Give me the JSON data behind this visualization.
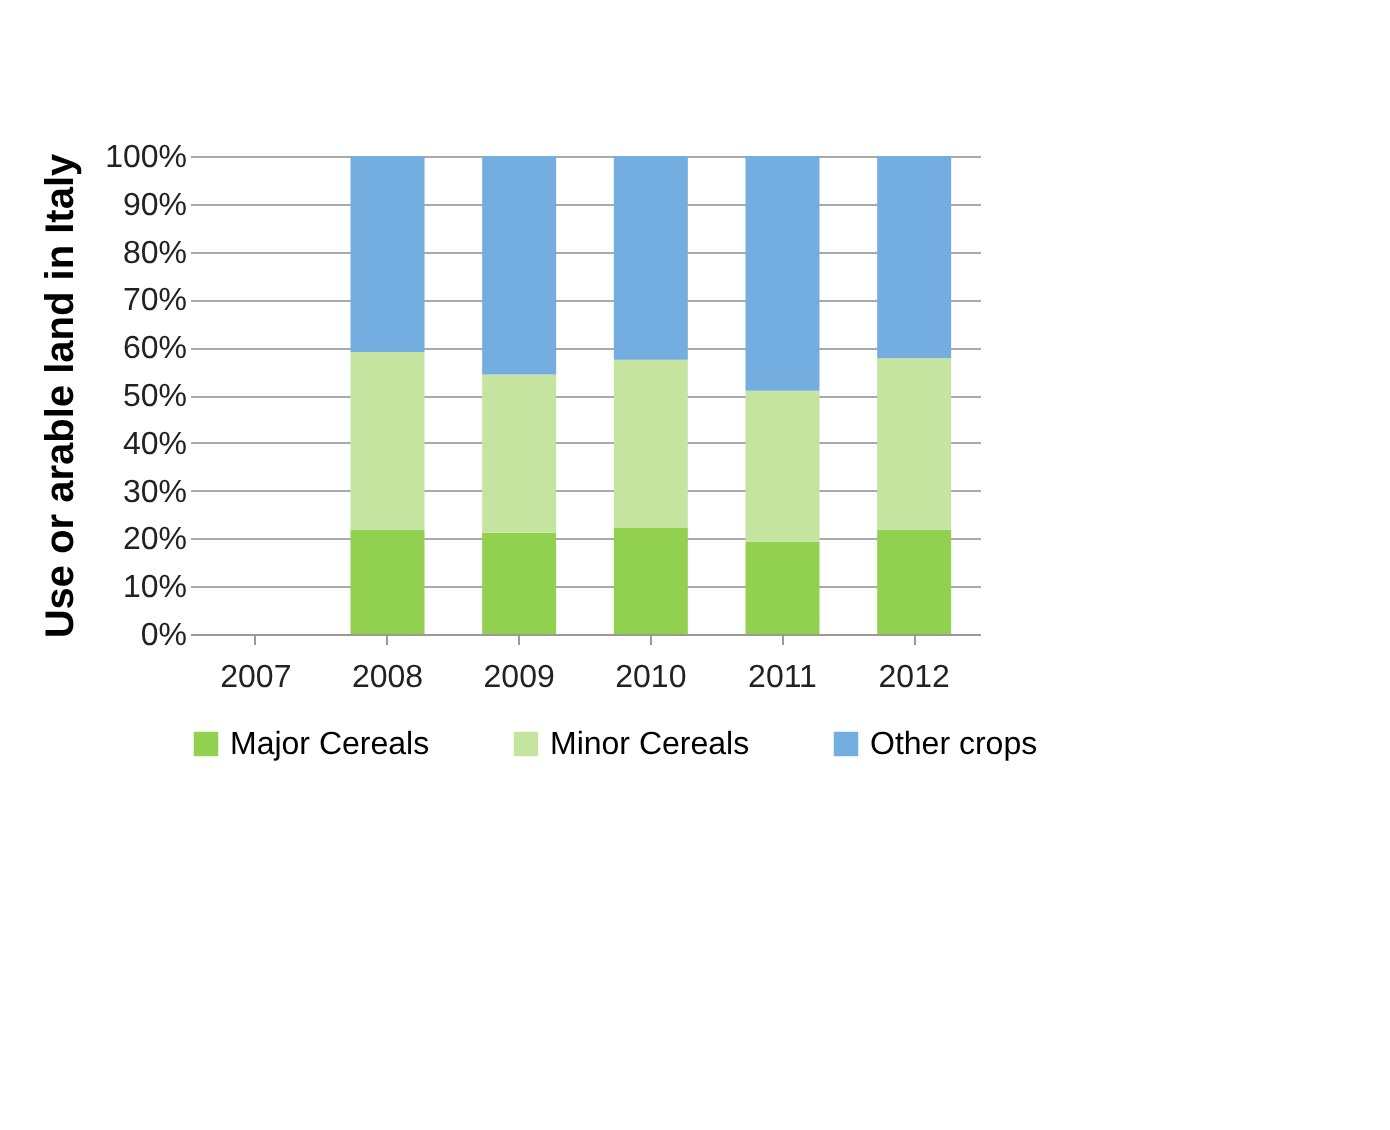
{
  "chart_data": {
    "type": "bar",
    "stacked": true,
    "ylabel": "Use or arable land in Italy",
    "categories": [
      "2007",
      "2008",
      "2009",
      "2010",
      "2011",
      "2012"
    ],
    "series": [
      {
        "name": "Major Cereals",
        "color": "#92d050",
        "values": [
          null,
          21.8,
          21.2,
          22.3,
          19.3,
          21.8
        ]
      },
      {
        "name": "Minor Cereals",
        "color": "#c4e4a0",
        "values": [
          null,
          37.2,
          33.1,
          35.1,
          31.6,
          35.9
        ]
      },
      {
        "name": "Other crops",
        "color": "#74aee0",
        "values": [
          null,
          41.0,
          45.7,
          42.6,
          49.1,
          42.3
        ]
      }
    ],
    "ylim": [
      0,
      100
    ],
    "yticks": [
      {
        "value": 0,
        "label": "0%"
      },
      {
        "value": 10,
        "label": "10%"
      },
      {
        "value": 20,
        "label": "20%"
      },
      {
        "value": 30,
        "label": "30%"
      },
      {
        "value": 40,
        "label": "40%"
      },
      {
        "value": 50,
        "label": "50%"
      },
      {
        "value": 60,
        "label": "60%"
      },
      {
        "value": 70,
        "label": "70%"
      },
      {
        "value": 80,
        "label": "80%"
      },
      {
        "value": 90,
        "label": "90%"
      },
      {
        "value": 100,
        "label": "100%"
      }
    ],
    "grid": "y",
    "legend": "bottom"
  }
}
